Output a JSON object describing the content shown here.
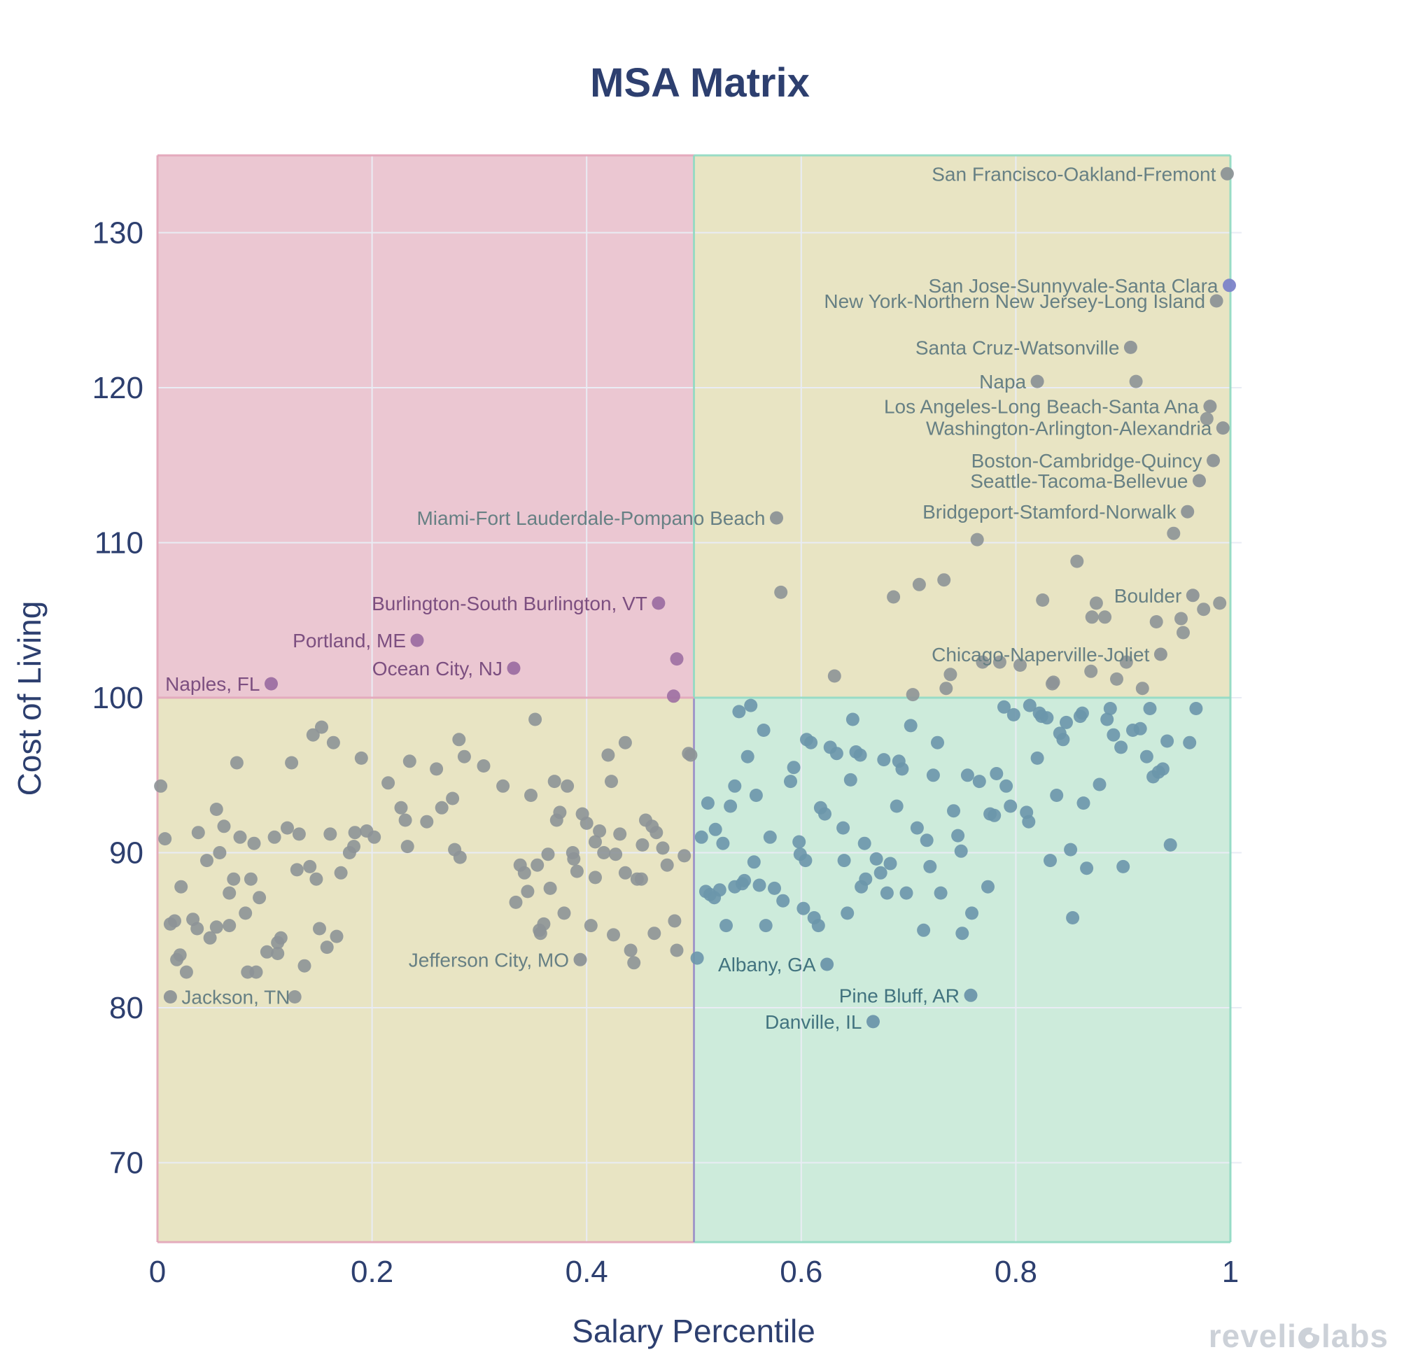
{
  "title": "MSA Matrix",
  "watermark": {
    "brand": "revelio labs",
    "left": "reveli",
    "right": "labs"
  },
  "colors": {
    "title_text": "#2d3f6f",
    "axis_text": "#2d3f6f",
    "quadrant_pink": "#ebc7d2",
    "quadrant_tan": "#e8e4c3",
    "quadrant_teal": "#cdebdb",
    "grid_line": "#e9ecf4",
    "border_pink": "#e2a4b8",
    "border_teal": "#8fd9c2",
    "border_lavender": "#9a8fc7",
    "dot_gray": "#8d9497",
    "dot_steel": "#6c96ab",
    "dot_purple": "#9d6fa2",
    "dot_highlight": "#7c83c9",
    "label_gray": "#678084",
    "label_steel": "#42737f",
    "label_purple": "#7c4f80",
    "watermark_text": "#ccd1d8"
  },
  "chart_data": {
    "type": "scatter",
    "title": "MSA Matrix",
    "xlabel": "Salary Percentile",
    "ylabel": "Cost of Living",
    "xlim": [
      0,
      1.01
    ],
    "ylim": [
      64.9,
      135.0
    ],
    "x_ticks": [
      0,
      0.2,
      0.4,
      0.6,
      0.8,
      1
    ],
    "y_ticks": [
      70,
      80,
      90,
      100,
      110,
      120,
      130
    ],
    "grid": true,
    "legend": "none",
    "quadrant_split": {
      "x": 0.5,
      "y": 100
    },
    "labeled_points": [
      {
        "name": "San Francisco-Oakland-Fremont",
        "x": 0.997,
        "y": 133.8,
        "group": "gray",
        "side": "left"
      },
      {
        "name": "San Jose-Sunnyvale-Santa Clara",
        "x": 0.999,
        "y": 126.6,
        "group": "highlight",
        "side": "left"
      },
      {
        "name": "New York-Northern New Jersey-Long Island",
        "x": 0.987,
        "y": 125.6,
        "group": "gray",
        "side": "left"
      },
      {
        "name": "Santa Cruz-Watsonville",
        "x": 0.907,
        "y": 122.6,
        "group": "gray",
        "side": "left"
      },
      {
        "name": "Napa",
        "x": 0.82,
        "y": 120.4,
        "group": "gray",
        "side": "left"
      },
      {
        "name": "Los Angeles-Long Beach-Santa Ana",
        "x": 0.981,
        "y": 118.8,
        "group": "gray",
        "side": "left"
      },
      {
        "name": "Washington-Arlington-Alexandria",
        "x": 0.993,
        "y": 117.4,
        "group": "gray",
        "side": "left"
      },
      {
        "name": "Boston-Cambridge-Quincy",
        "x": 0.984,
        "y": 115.3,
        "group": "gray",
        "side": "left"
      },
      {
        "name": "Seattle-Tacoma-Bellevue",
        "x": 0.971,
        "y": 114.0,
        "group": "gray",
        "side": "left"
      },
      {
        "name": "Bridgeport-Stamford-Norwalk",
        "x": 0.96,
        "y": 112.0,
        "group": "gray",
        "side": "left"
      },
      {
        "name": "Miami-Fort Lauderdale-Pompano Beach",
        "x": 0.577,
        "y": 111.6,
        "group": "gray",
        "side": "left"
      },
      {
        "name": "Boulder",
        "x": 0.965,
        "y": 106.6,
        "group": "gray",
        "side": "left"
      },
      {
        "name": "Chicago-Naperville-Joliet",
        "x": 0.935,
        "y": 102.8,
        "group": "gray",
        "side": "left"
      },
      {
        "name": "Burlington-South Burlington, VT",
        "x": 0.467,
        "y": 106.1,
        "group": "purple",
        "side": "left"
      },
      {
        "name": "Portland, ME",
        "x": 0.242,
        "y": 103.7,
        "group": "purple",
        "side": "left"
      },
      {
        "name": "Ocean City, NJ",
        "x": 0.332,
        "y": 101.9,
        "group": "purple",
        "side": "left"
      },
      {
        "name": "Naples, FL",
        "x": 0.106,
        "y": 100.9,
        "group": "purple",
        "side": "left"
      },
      {
        "name": "Jefferson City, MO",
        "x": 0.394,
        "y": 83.1,
        "group": "gray",
        "side": "left"
      },
      {
        "name": "Jackson, TN",
        "x": 0.012,
        "y": 80.7,
        "group": "gray",
        "side": "right"
      },
      {
        "name": "Albany, GA",
        "x": 0.624,
        "y": 82.8,
        "group": "steel",
        "side": "left"
      },
      {
        "name": "Pine Bluff, AR",
        "x": 0.758,
        "y": 80.8,
        "group": "steel",
        "side": "left"
      },
      {
        "name": "Danville, IL",
        "x": 0.667,
        "y": 79.1,
        "group": "steel",
        "side": "left"
      }
    ],
    "unlabeled_points": {
      "purple": [
        [
          0.484,
          102.5
        ],
        [
          0.481,
          100.1
        ]
      ],
      "gray": [
        [
          0.912,
          120.4
        ],
        [
          0.978,
          118.0
        ],
        [
          0.947,
          110.6
        ],
        [
          0.857,
          108.8
        ],
        [
          0.764,
          110.2
        ],
        [
          0.581,
          106.8
        ],
        [
          0.686,
          106.5
        ],
        [
          0.71,
          107.3
        ],
        [
          0.733,
          107.6
        ],
        [
          0.825,
          106.3
        ],
        [
          0.99,
          106.1
        ],
        [
          0.975,
          105.7
        ],
        [
          0.875,
          106.1
        ],
        [
          0.871,
          105.2
        ],
        [
          0.883,
          105.2
        ],
        [
          0.931,
          104.9
        ],
        [
          0.954,
          105.1
        ],
        [
          0.956,
          104.2
        ],
        [
          0.903,
          102.3
        ],
        [
          0.804,
          102.1
        ],
        [
          0.87,
          101.7
        ],
        [
          0.894,
          101.2
        ],
        [
          0.835,
          101.0
        ],
        [
          0.918,
          100.6
        ],
        [
          0.631,
          101.4
        ],
        [
          0.704,
          100.2
        ],
        [
          0.735,
          100.6
        ],
        [
          0.739,
          101.5
        ],
        [
          0.769,
          102.3
        ],
        [
          0.785,
          102.3
        ],
        [
          0.834,
          100.9
        ],
        [
          0.153,
          98.1
        ],
        [
          0.145,
          97.6
        ],
        [
          0.164,
          97.1
        ],
        [
          0.074,
          95.8
        ],
        [
          0.125,
          95.8
        ],
        [
          0.19,
          96.1
        ],
        [
          0.235,
          95.9
        ],
        [
          0.281,
          97.3
        ],
        [
          0.286,
          96.2
        ],
        [
          0.304,
          95.6
        ],
        [
          0.26,
          95.4
        ],
        [
          0.322,
          94.3
        ],
        [
          0.215,
          94.5
        ],
        [
          0.003,
          94.3
        ],
        [
          0.055,
          92.8
        ],
        [
          0.227,
          92.9
        ],
        [
          0.231,
          92.1
        ],
        [
          0.251,
          92.0
        ],
        [
          0.265,
          92.9
        ],
        [
          0.275,
          93.5
        ],
        [
          0.062,
          91.7
        ],
        [
          0.038,
          91.3
        ],
        [
          0.007,
          90.9
        ],
        [
          0.077,
          91.0
        ],
        [
          0.121,
          91.6
        ],
        [
          0.132,
          91.2
        ],
        [
          0.109,
          91.0
        ],
        [
          0.09,
          90.6
        ],
        [
          0.161,
          91.2
        ],
        [
          0.184,
          91.3
        ],
        [
          0.195,
          91.4
        ],
        [
          0.202,
          91.0
        ],
        [
          0.183,
          90.4
        ],
        [
          0.179,
          90.0
        ],
        [
          0.058,
          90.0
        ],
        [
          0.046,
          89.5
        ],
        [
          0.233,
          90.4
        ],
        [
          0.277,
          90.2
        ],
        [
          0.282,
          89.7
        ],
        [
          0.13,
          88.9
        ],
        [
          0.142,
          89.1
        ],
        [
          0.148,
          88.3
        ],
        [
          0.171,
          88.7
        ],
        [
          0.022,
          87.8
        ],
        [
          0.071,
          88.3
        ],
        [
          0.067,
          87.4
        ],
        [
          0.087,
          88.3
        ],
        [
          0.095,
          87.1
        ],
        [
          0.082,
          86.1
        ],
        [
          0.012,
          85.4
        ],
        [
          0.016,
          85.6
        ],
        [
          0.033,
          85.7
        ],
        [
          0.037,
          85.1
        ],
        [
          0.055,
          85.2
        ],
        [
          0.067,
          85.3
        ],
        [
          0.049,
          84.5
        ],
        [
          0.151,
          85.1
        ],
        [
          0.167,
          84.6
        ],
        [
          0.112,
          84.2
        ],
        [
          0.115,
          84.5
        ],
        [
          0.102,
          83.6
        ],
        [
          0.112,
          83.5
        ],
        [
          0.158,
          83.9
        ],
        [
          0.021,
          83.4
        ],
        [
          0.018,
          83.1
        ],
        [
          0.027,
          82.3
        ],
        [
          0.084,
          82.3
        ],
        [
          0.092,
          82.3
        ],
        [
          0.137,
          82.7
        ],
        [
          0.128,
          80.7
        ],
        [
          0.352,
          98.6
        ],
        [
          0.436,
          97.1
        ],
        [
          0.42,
          96.3
        ],
        [
          0.495,
          96.4
        ],
        [
          0.497,
          96.3
        ],
        [
          0.423,
          94.6
        ],
        [
          0.37,
          94.6
        ],
        [
          0.382,
          94.3
        ],
        [
          0.348,
          93.7
        ],
        [
          0.375,
          92.6
        ],
        [
          0.372,
          92.1
        ],
        [
          0.396,
          92.5
        ],
        [
          0.4,
          91.9
        ],
        [
          0.455,
          92.1
        ],
        [
          0.461,
          91.7
        ],
        [
          0.465,
          91.3
        ],
        [
          0.412,
          91.4
        ],
        [
          0.431,
          91.2
        ],
        [
          0.408,
          90.7
        ],
        [
          0.452,
          90.5
        ],
        [
          0.471,
          90.3
        ],
        [
          0.364,
          89.9
        ],
        [
          0.387,
          90.0
        ],
        [
          0.388,
          89.6
        ],
        [
          0.416,
          90.0
        ],
        [
          0.427,
          89.9
        ],
        [
          0.491,
          89.8
        ],
        [
          0.475,
          89.2
        ],
        [
          0.338,
          89.2
        ],
        [
          0.342,
          88.7
        ],
        [
          0.354,
          89.2
        ],
        [
          0.391,
          88.8
        ],
        [
          0.436,
          88.7
        ],
        [
          0.447,
          88.3
        ],
        [
          0.451,
          88.3
        ],
        [
          0.408,
          88.4
        ],
        [
          0.345,
          87.5
        ],
        [
          0.366,
          87.7
        ],
        [
          0.334,
          86.8
        ],
        [
          0.379,
          86.1
        ],
        [
          0.36,
          85.4
        ],
        [
          0.356,
          85.0
        ],
        [
          0.404,
          85.3
        ],
        [
          0.482,
          85.6
        ],
        [
          0.425,
          84.7
        ],
        [
          0.463,
          84.8
        ],
        [
          0.441,
          83.7
        ],
        [
          0.444,
          82.9
        ],
        [
          0.484,
          83.7
        ],
        [
          0.357,
          84.8
        ]
      ],
      "steel": [
        [
          0.542,
          99.1
        ],
        [
          0.553,
          99.5
        ],
        [
          0.565,
          97.9
        ],
        [
          0.605,
          97.3
        ],
        [
          0.609,
          97.1
        ],
        [
          0.627,
          96.8
        ],
        [
          0.633,
          96.4
        ],
        [
          0.648,
          98.6
        ],
        [
          0.651,
          96.5
        ],
        [
          0.655,
          96.3
        ],
        [
          0.55,
          96.2
        ],
        [
          0.593,
          95.5
        ],
        [
          0.59,
          94.6
        ],
        [
          0.538,
          94.3
        ],
        [
          0.646,
          94.7
        ],
        [
          0.558,
          93.7
        ],
        [
          0.513,
          93.2
        ],
        [
          0.534,
          93.0
        ],
        [
          0.618,
          92.9
        ],
        [
          0.622,
          92.5
        ],
        [
          0.52,
          91.5
        ],
        [
          0.507,
          91.0
        ],
        [
          0.527,
          90.6
        ],
        [
          0.571,
          91.0
        ],
        [
          0.598,
          90.7
        ],
        [
          0.639,
          91.6
        ],
        [
          0.659,
          90.6
        ],
        [
          0.599,
          89.9
        ],
        [
          0.604,
          89.5
        ],
        [
          0.556,
          89.4
        ],
        [
          0.64,
          89.5
        ],
        [
          0.66,
          88.3
        ],
        [
          0.656,
          87.8
        ],
        [
          0.511,
          87.5
        ],
        [
          0.515,
          87.3
        ],
        [
          0.519,
          87.1
        ],
        [
          0.524,
          87.6
        ],
        [
          0.538,
          87.8
        ],
        [
          0.545,
          88.0
        ],
        [
          0.547,
          88.2
        ],
        [
          0.561,
          87.9
        ],
        [
          0.575,
          87.7
        ],
        [
          0.583,
          86.9
        ],
        [
          0.602,
          86.4
        ],
        [
          0.53,
          85.3
        ],
        [
          0.567,
          85.3
        ],
        [
          0.612,
          85.8
        ],
        [
          0.616,
          85.3
        ],
        [
          0.643,
          86.1
        ],
        [
          0.503,
          83.2
        ],
        [
          0.702,
          98.2
        ],
        [
          0.727,
          97.1
        ],
        [
          0.789,
          99.4
        ],
        [
          0.798,
          98.9
        ],
        [
          0.813,
          99.5
        ],
        [
          0.822,
          99.0
        ],
        [
          0.824,
          98.8
        ],
        [
          0.829,
          98.7
        ],
        [
          0.847,
          98.4
        ],
        [
          0.86,
          98.8
        ],
        [
          0.862,
          99.0
        ],
        [
          0.885,
          98.6
        ],
        [
          0.888,
          99.3
        ],
        [
          0.891,
          97.6
        ],
        [
          0.909,
          97.9
        ],
        [
          0.916,
          98.0
        ],
        [
          0.925,
          99.3
        ],
        [
          0.941,
          97.2
        ],
        [
          0.962,
          97.1
        ],
        [
          0.968,
          99.3
        ],
        [
          0.841,
          97.7
        ],
        [
          0.844,
          97.3
        ],
        [
          0.898,
          96.8
        ],
        [
          0.677,
          96.0
        ],
        [
          0.691,
          95.9
        ],
        [
          0.694,
          95.4
        ],
        [
          0.82,
          96.1
        ],
        [
          0.922,
          96.2
        ],
        [
          0.937,
          95.4
        ],
        [
          0.723,
          95.0
        ],
        [
          0.755,
          95.0
        ],
        [
          0.766,
          94.6
        ],
        [
          0.782,
          95.1
        ],
        [
          0.791,
          94.3
        ],
        [
          0.928,
          94.9
        ],
        [
          0.933,
          95.2
        ],
        [
          0.878,
          94.4
        ],
        [
          0.838,
          93.7
        ],
        [
          0.689,
          93.0
        ],
        [
          0.742,
          92.7
        ],
        [
          0.795,
          93.0
        ],
        [
          0.776,
          92.5
        ],
        [
          0.78,
          92.4
        ],
        [
          0.81,
          92.6
        ],
        [
          0.812,
          92.0
        ],
        [
          0.863,
          93.2
        ],
        [
          0.708,
          91.6
        ],
        [
          0.746,
          91.1
        ],
        [
          0.717,
          90.8
        ],
        [
          0.944,
          90.5
        ],
        [
          0.851,
          90.2
        ],
        [
          0.749,
          90.1
        ],
        [
          0.67,
          89.6
        ],
        [
          0.683,
          89.3
        ],
        [
          0.674,
          88.7
        ],
        [
          0.72,
          89.1
        ],
        [
          0.832,
          89.5
        ],
        [
          0.866,
          89.0
        ],
        [
          0.9,
          89.1
        ],
        [
          0.774,
          87.8
        ],
        [
          0.68,
          87.4
        ],
        [
          0.698,
          87.4
        ],
        [
          0.73,
          87.4
        ],
        [
          0.759,
          86.1
        ],
        [
          0.853,
          85.8
        ],
        [
          0.714,
          85.0
        ],
        [
          0.75,
          84.8
        ]
      ]
    }
  }
}
